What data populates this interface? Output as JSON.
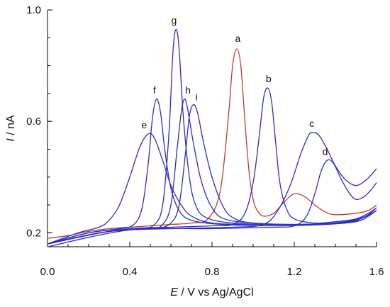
{
  "chart_data": {
    "type": "line",
    "title": "",
    "xlabel_symbol": "E",
    "xlabel_rest": " / V vs Ag/AgCl",
    "ylabel_symbol": "I",
    "ylabel_rest": " / nA",
    "xlim": [
      0.0,
      1.6
    ],
    "ylim": [
      0.15,
      1.0
    ],
    "xticks": [
      "0.0",
      "0.4",
      "0.8",
      "1.2",
      "1.6"
    ],
    "yticks": [
      "0.2",
      "0.6",
      "1.0"
    ],
    "grid": false,
    "legend": "none",
    "colors": {
      "red": "#c0392b",
      "blue": "#2b2bc8"
    },
    "series": [
      {
        "label": "a",
        "color": "red",
        "points": [
          [
            0.0,
            0.18
          ],
          [
            0.1,
            0.19
          ],
          [
            0.2,
            0.205
          ],
          [
            0.3,
            0.215
          ],
          [
            0.4,
            0.22
          ],
          [
            0.5,
            0.225
          ],
          [
            0.6,
            0.23
          ],
          [
            0.7,
            0.235
          ],
          [
            0.78,
            0.25
          ],
          [
            0.84,
            0.35
          ],
          [
            0.88,
            0.62
          ],
          [
            0.9,
            0.8
          ],
          [
            0.92,
            0.86
          ],
          [
            0.94,
            0.8
          ],
          [
            0.96,
            0.6
          ],
          [
            0.98,
            0.42
          ],
          [
            1.0,
            0.32
          ],
          [
            1.02,
            0.28
          ],
          [
            1.05,
            0.26
          ],
          [
            1.1,
            0.27
          ],
          [
            1.15,
            0.31
          ],
          [
            1.2,
            0.34
          ],
          [
            1.25,
            0.33
          ],
          [
            1.3,
            0.3
          ],
          [
            1.35,
            0.275
          ],
          [
            1.4,
            0.265
          ],
          [
            1.5,
            0.27
          ],
          [
            1.56,
            0.28
          ],
          [
            1.6,
            0.3
          ]
        ]
      },
      {
        "label": "b",
        "color": "blue",
        "points": [
          [
            0.0,
            0.16
          ],
          [
            0.2,
            0.2
          ],
          [
            0.4,
            0.215
          ],
          [
            0.6,
            0.22
          ],
          [
            0.8,
            0.225
          ],
          [
            0.9,
            0.23
          ],
          [
            0.96,
            0.27
          ],
          [
            1.0,
            0.38
          ],
          [
            1.03,
            0.55
          ],
          [
            1.05,
            0.68
          ],
          [
            1.07,
            0.72
          ],
          [
            1.09,
            0.67
          ],
          [
            1.11,
            0.52
          ],
          [
            1.13,
            0.38
          ],
          [
            1.16,
            0.29
          ],
          [
            1.2,
            0.25
          ],
          [
            1.3,
            0.235
          ],
          [
            1.4,
            0.24
          ],
          [
            1.5,
            0.25
          ],
          [
            1.56,
            0.27
          ],
          [
            1.6,
            0.29
          ]
        ]
      },
      {
        "label": "c",
        "color": "blue",
        "points": [
          [
            0.0,
            0.16
          ],
          [
            0.3,
            0.205
          ],
          [
            0.6,
            0.215
          ],
          [
            0.9,
            0.22
          ],
          [
            1.05,
            0.23
          ],
          [
            1.12,
            0.28
          ],
          [
            1.18,
            0.37
          ],
          [
            1.23,
            0.48
          ],
          [
            1.27,
            0.55
          ],
          [
            1.29,
            0.56
          ],
          [
            1.32,
            0.55
          ],
          [
            1.36,
            0.5
          ],
          [
            1.4,
            0.44
          ],
          [
            1.45,
            0.39
          ],
          [
            1.5,
            0.37
          ],
          [
            1.55,
            0.39
          ],
          [
            1.6,
            0.43
          ]
        ]
      },
      {
        "label": "d",
        "color": "blue",
        "points": [
          [
            0.0,
            0.15
          ],
          [
            0.4,
            0.21
          ],
          [
            0.8,
            0.215
          ],
          [
            1.1,
            0.22
          ],
          [
            1.2,
            0.225
          ],
          [
            1.26,
            0.26
          ],
          [
            1.3,
            0.34
          ],
          [
            1.33,
            0.42
          ],
          [
            1.36,
            0.46
          ],
          [
            1.39,
            0.45
          ],
          [
            1.43,
            0.39
          ],
          [
            1.47,
            0.34
          ],
          [
            1.5,
            0.32
          ],
          [
            1.54,
            0.33
          ],
          [
            1.58,
            0.36
          ],
          [
            1.6,
            0.38
          ]
        ]
      },
      {
        "label": "e",
        "color": "blue",
        "points": [
          [
            0.0,
            0.16
          ],
          [
            0.15,
            0.2
          ],
          [
            0.25,
            0.22
          ],
          [
            0.3,
            0.245
          ],
          [
            0.35,
            0.3
          ],
          [
            0.4,
            0.4
          ],
          [
            0.45,
            0.51
          ],
          [
            0.49,
            0.555
          ],
          [
            0.52,
            0.54
          ],
          [
            0.56,
            0.46
          ],
          [
            0.6,
            0.37
          ],
          [
            0.65,
            0.3
          ],
          [
            0.7,
            0.26
          ],
          [
            0.8,
            0.235
          ],
          [
            1.0,
            0.23
          ],
          [
            1.2,
            0.23
          ],
          [
            1.4,
            0.235
          ],
          [
            1.5,
            0.245
          ],
          [
            1.56,
            0.265
          ],
          [
            1.6,
            0.29
          ]
        ]
      },
      {
        "label": "f",
        "color": "blue",
        "points": [
          [
            0.0,
            0.16
          ],
          [
            0.2,
            0.2
          ],
          [
            0.35,
            0.215
          ],
          [
            0.42,
            0.23
          ],
          [
            0.46,
            0.29
          ],
          [
            0.49,
            0.45
          ],
          [
            0.51,
            0.61
          ],
          [
            0.53,
            0.68
          ],
          [
            0.55,
            0.63
          ],
          [
            0.57,
            0.5
          ],
          [
            0.6,
            0.36
          ],
          [
            0.64,
            0.28
          ],
          [
            0.7,
            0.245
          ],
          [
            0.85,
            0.23
          ],
          [
            1.1,
            0.225
          ],
          [
            1.35,
            0.23
          ],
          [
            1.5,
            0.24
          ],
          [
            1.56,
            0.26
          ],
          [
            1.6,
            0.28
          ]
        ]
      },
      {
        "label": "g",
        "color": "blue",
        "points": [
          [
            0.0,
            0.16
          ],
          [
            0.25,
            0.2
          ],
          [
            0.45,
            0.215
          ],
          [
            0.52,
            0.23
          ],
          [
            0.56,
            0.3
          ],
          [
            0.59,
            0.55
          ],
          [
            0.61,
            0.85
          ],
          [
            0.625,
            0.93
          ],
          [
            0.64,
            0.86
          ],
          [
            0.66,
            0.62
          ],
          [
            0.69,
            0.4
          ],
          [
            0.72,
            0.3
          ],
          [
            0.77,
            0.255
          ],
          [
            0.9,
            0.235
          ],
          [
            1.15,
            0.23
          ],
          [
            1.4,
            0.235
          ],
          [
            1.52,
            0.245
          ],
          [
            1.57,
            0.265
          ],
          [
            1.6,
            0.28
          ]
        ]
      },
      {
        "label": "h",
        "color": "blue",
        "points": [
          [
            0.0,
            0.16
          ],
          [
            0.3,
            0.205
          ],
          [
            0.5,
            0.215
          ],
          [
            0.56,
            0.23
          ],
          [
            0.6,
            0.3
          ],
          [
            0.63,
            0.5
          ],
          [
            0.65,
            0.63
          ],
          [
            0.665,
            0.68
          ],
          [
            0.68,
            0.65
          ],
          [
            0.71,
            0.52
          ],
          [
            0.75,
            0.38
          ],
          [
            0.8,
            0.29
          ],
          [
            0.86,
            0.25
          ],
          [
            1.0,
            0.235
          ],
          [
            1.25,
            0.23
          ],
          [
            1.45,
            0.24
          ],
          [
            1.55,
            0.26
          ],
          [
            1.6,
            0.28
          ]
        ]
      },
      {
        "label": "i",
        "color": "blue",
        "points": [
          [
            0.0,
            0.16
          ],
          [
            0.3,
            0.205
          ],
          [
            0.52,
            0.215
          ],
          [
            0.6,
            0.235
          ],
          [
            0.64,
            0.3
          ],
          [
            0.67,
            0.48
          ],
          [
            0.69,
            0.62
          ],
          [
            0.71,
            0.66
          ],
          [
            0.73,
            0.63
          ],
          [
            0.76,
            0.52
          ],
          [
            0.8,
            0.4
          ],
          [
            0.85,
            0.3
          ],
          [
            0.9,
            0.255
          ],
          [
            1.0,
            0.235
          ],
          [
            1.25,
            0.23
          ],
          [
            1.45,
            0.24
          ],
          [
            1.55,
            0.26
          ],
          [
            1.6,
            0.28
          ]
        ]
      }
    ],
    "peak_labels": [
      {
        "text": "a",
        "x": 0.925,
        "y": 0.885
      },
      {
        "text": "b",
        "x": 1.075,
        "y": 0.74
      },
      {
        "text": "c",
        "x": 1.285,
        "y": 0.58
      },
      {
        "text": "d",
        "x": 1.35,
        "y": 0.48
      },
      {
        "text": "e",
        "x": 0.47,
        "y": 0.575
      },
      {
        "text": "f",
        "x": 0.52,
        "y": 0.7
      },
      {
        "text": "g",
        "x": 0.615,
        "y": 0.95
      },
      {
        "text": "h",
        "x": 0.683,
        "y": 0.7
      },
      {
        "text": "i",
        "x": 0.725,
        "y": 0.675
      }
    ]
  }
}
